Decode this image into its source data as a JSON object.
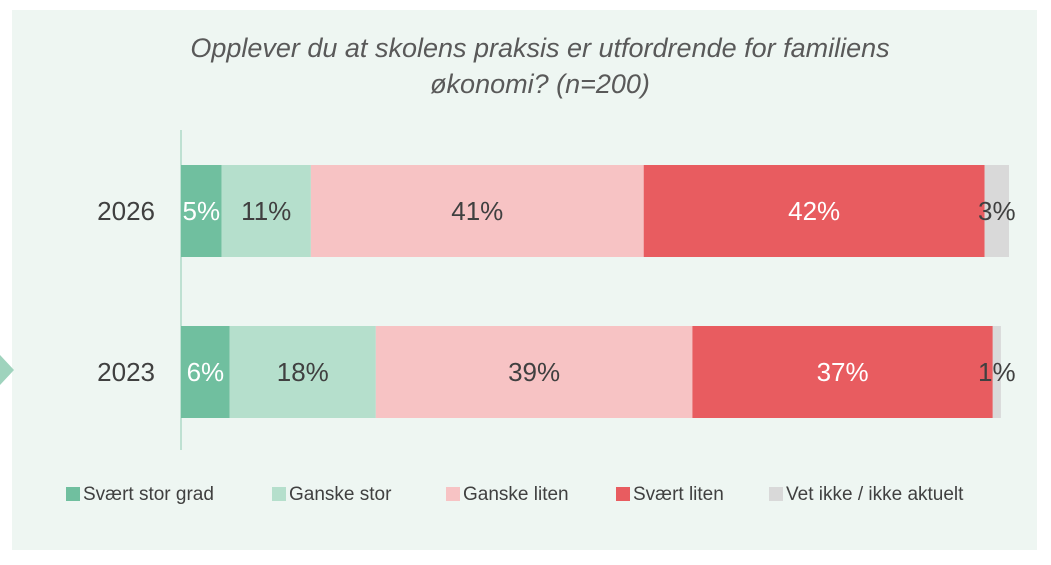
{
  "chart_data": {
    "type": "bar",
    "orientation": "horizontal",
    "title": "Opplever du at skolens praksis er utfordrende for familiens økonomi? (n=200)",
    "categories": [
      "2026",
      "2023"
    ],
    "series": [
      {
        "name": "Svært stor grad",
        "color": "#70bf9f",
        "label_color": "#ffffff",
        "values": [
          5,
          6
        ],
        "value_labels": [
          "5%",
          "6%"
        ]
      },
      {
        "name": "Ganske stor",
        "color": "#b5dfcc",
        "label_color": "#404040",
        "values": [
          11,
          18
        ],
        "value_labels": [
          "11%",
          "18%"
        ]
      },
      {
        "name": "Ganske liten",
        "color": "#f7c3c4",
        "label_color": "#404040",
        "values": [
          41,
          39
        ],
        "value_labels": [
          "41%",
          "39%"
        ]
      },
      {
        "name": "Svært liten",
        "color": "#e85c60",
        "label_color": "#ffffff",
        "values": [
          42,
          37
        ],
        "value_labels": [
          "42%",
          "37%"
        ]
      },
      {
        "name": "Vet ikke / ikke aktuelt",
        "color": "#d9d9d9",
        "label_color": "#404040",
        "values": [
          3,
          1
        ],
        "value_labels": [
          "3%",
          "1%"
        ]
      }
    ],
    "xlim": [
      0,
      102
    ]
  }
}
